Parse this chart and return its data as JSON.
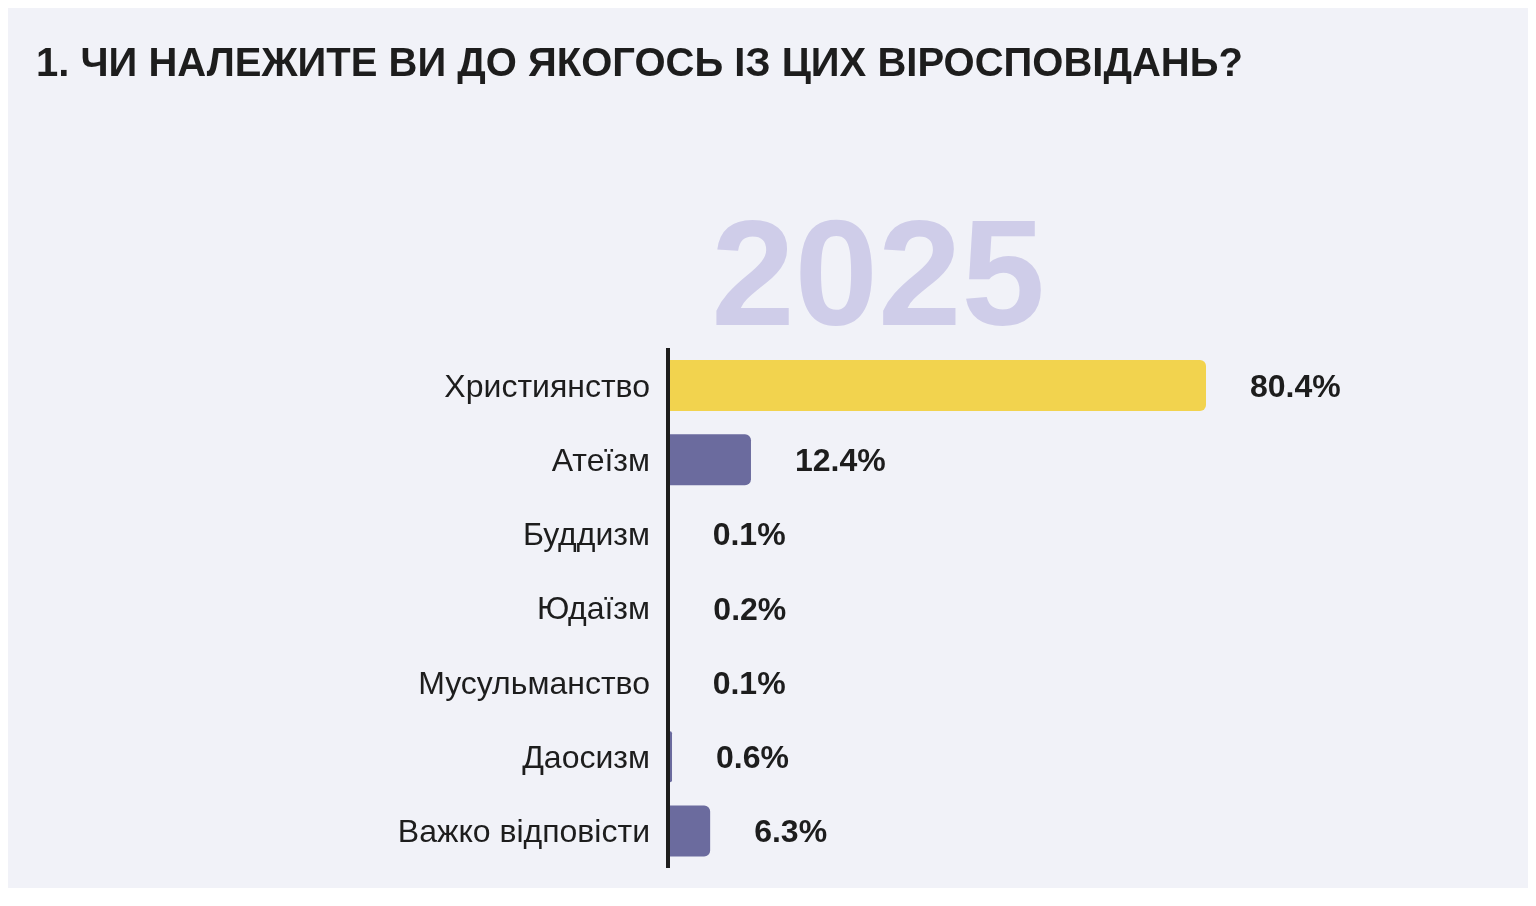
{
  "chart_data": {
    "type": "bar",
    "orientation": "horizontal",
    "title": "1. ЧИ НАЛЕЖИТЕ ВИ ДО ЯКОГОСЬ ІЗ ЦИХ ВІРОСПОВІДАНЬ?",
    "subtitle": "2025",
    "categories": [
      "Християнство",
      "Атеїзм",
      "Буддизм",
      "Юдаїзм",
      "Мусульманство",
      "Даосизм",
      "Важко відповісти"
    ],
    "values": [
      80.4,
      12.4,
      0.1,
      0.2,
      0.1,
      0.6,
      6.3
    ],
    "colors": [
      "#f2d34e",
      "#6b6b9e",
      "#6b6b9e",
      "#6b6b9e",
      "#6b6b9e",
      "#6b6b9e",
      "#6b6b9e"
    ],
    "value_labels": [
      "80.4%",
      "12.4%",
      "0.1%",
      "0.2%",
      "0.1%",
      "0.6%",
      "6.3%"
    ]
  }
}
